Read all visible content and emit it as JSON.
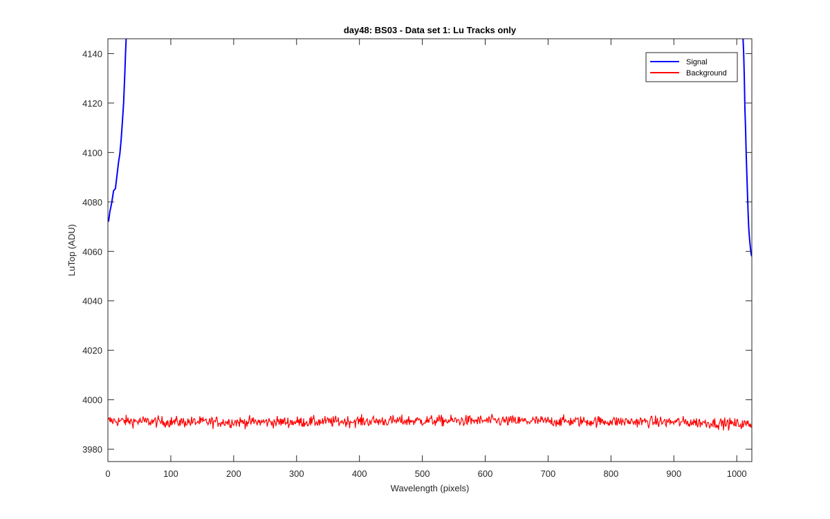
{
  "chart_data": {
    "type": "line",
    "title": "day48: BS03 - Data set 1: Lu Tracks only",
    "xlabel": "Wavelength (pixels)",
    "ylabel": "LuTop (ADU)",
    "xlim": [
      0,
      1024
    ],
    "ylim": [
      3975,
      4146
    ],
    "xticks": [
      0,
      100,
      200,
      300,
      400,
      500,
      600,
      700,
      800,
      900,
      1000
    ],
    "yticks": [
      3980,
      4000,
      4020,
      4040,
      4060,
      4080,
      4100,
      4120,
      4140
    ],
    "grid": false,
    "legend_position": "top-right",
    "series": [
      {
        "name": "Signal",
        "color": "#0000ff",
        "segments": [
          {
            "x": [
              1,
              3,
              6,
              9,
              12,
              14,
              17,
              19,
              21,
              23,
              25,
              27,
              28,
              29
            ],
            "y": [
              4072,
              4076,
              4080,
              4084,
              4086,
              4090,
              4096,
              4100,
              4105,
              4112,
              4120,
              4132,
              4140,
              4146
            ]
          },
          {
            "x": [
              1010,
              1011,
              1012,
              1013,
              1014,
              1015,
              1016,
              1017,
              1018,
              1019,
              1020,
              1021,
              1022,
              1023,
              1024
            ],
            "y": [
              4146,
              4140,
              4130,
              4118,
              4110,
              4100,
              4092,
              4084,
              4076,
              4070,
              4066,
              4063,
              4061,
              4059,
              4058
            ]
          }
        ]
      },
      {
        "name": "Background",
        "color": "#ff0000",
        "baseline": [
          [
            0,
            3991.5
          ],
          [
            100,
            3991.0
          ],
          [
            200,
            3991.0
          ],
          [
            300,
            3991.0
          ],
          [
            400,
            3991.3
          ],
          [
            500,
            3991.5
          ],
          [
            600,
            3991.5
          ],
          [
            700,
            3991.3
          ],
          [
            800,
            3991.2
          ],
          [
            900,
            3991.0
          ],
          [
            950,
            3990.7
          ],
          [
            1024,
            3990.0
          ]
        ],
        "noise_amplitude": 1.6,
        "samples": 1024
      }
    ]
  }
}
